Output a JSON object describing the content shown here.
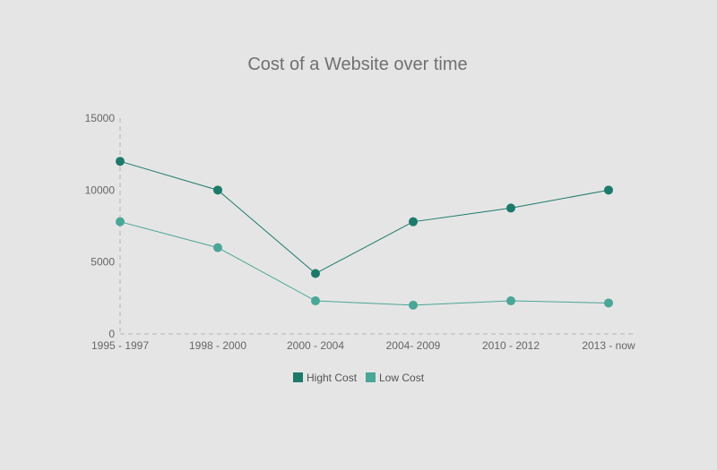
{
  "chart_data": {
    "type": "line",
    "title": "Cost of a Website over time",
    "xlabel": "",
    "ylabel": "",
    "categories": [
      "1995 - 1997",
      "1998 - 2000",
      "2000 - 2004",
      "2004- 2009",
      "2010 - 2012",
      "2013 - now"
    ],
    "ylim": [
      0,
      15000
    ],
    "yticks": [
      0,
      5000,
      10000,
      15000
    ],
    "grid": false,
    "legend_position": "bottom",
    "series": [
      {
        "name": "Hight Cost",
        "color": "#1d7a6b",
        "values": [
          12000,
          10000,
          4200,
          7800,
          8750,
          10000
        ]
      },
      {
        "name": "Low Cost",
        "color": "#4aa696",
        "values": [
          7800,
          6000,
          2300,
          2000,
          2300,
          2150
        ]
      }
    ]
  }
}
